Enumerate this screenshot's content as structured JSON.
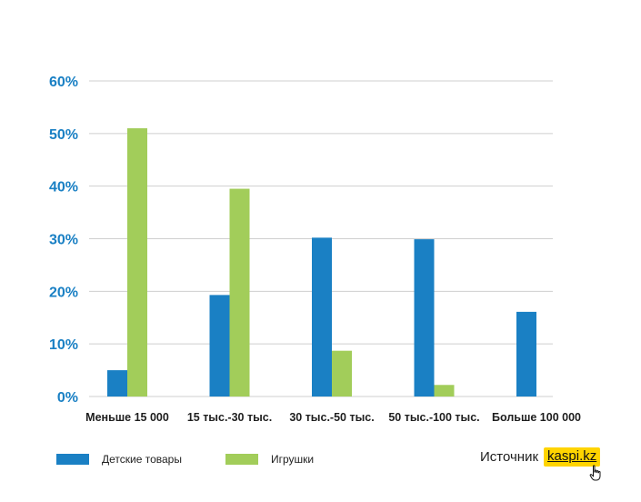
{
  "chart_data": {
    "type": "bar",
    "categories": [
      "Меньше 15 000",
      "15 тыс.-30 тыс.",
      "30 тыс.-50 тыс.",
      "50 тыс.-100 тыс.",
      "Больше 100 000"
    ],
    "series": [
      {
        "name": "Детские товары",
        "color": "#1a80c4",
        "values": [
          5,
          19.3,
          30.2,
          29.9,
          16.1
        ]
      },
      {
        "name": "Игрушки",
        "color": "#a2cd5a",
        "values": [
          51,
          39.5,
          8.7,
          2.2,
          0
        ]
      }
    ],
    "yticks": [
      "0%",
      "10%",
      "20%",
      "30%",
      "40%",
      "50%",
      "60%"
    ],
    "ylim": [
      0,
      60
    ],
    "grid": true,
    "legend_position": "bottom-left",
    "xlabel": "",
    "ylabel": "",
    "title": ""
  },
  "colors": {
    "ytick_text": "#1a80c4",
    "gridline": "#cfcfcf",
    "logo_background": "#ffd400"
  },
  "source": {
    "label": "Источник",
    "logo_text": "kaspi.kz",
    "cursor_icon": "hand-pointer-icon"
  }
}
